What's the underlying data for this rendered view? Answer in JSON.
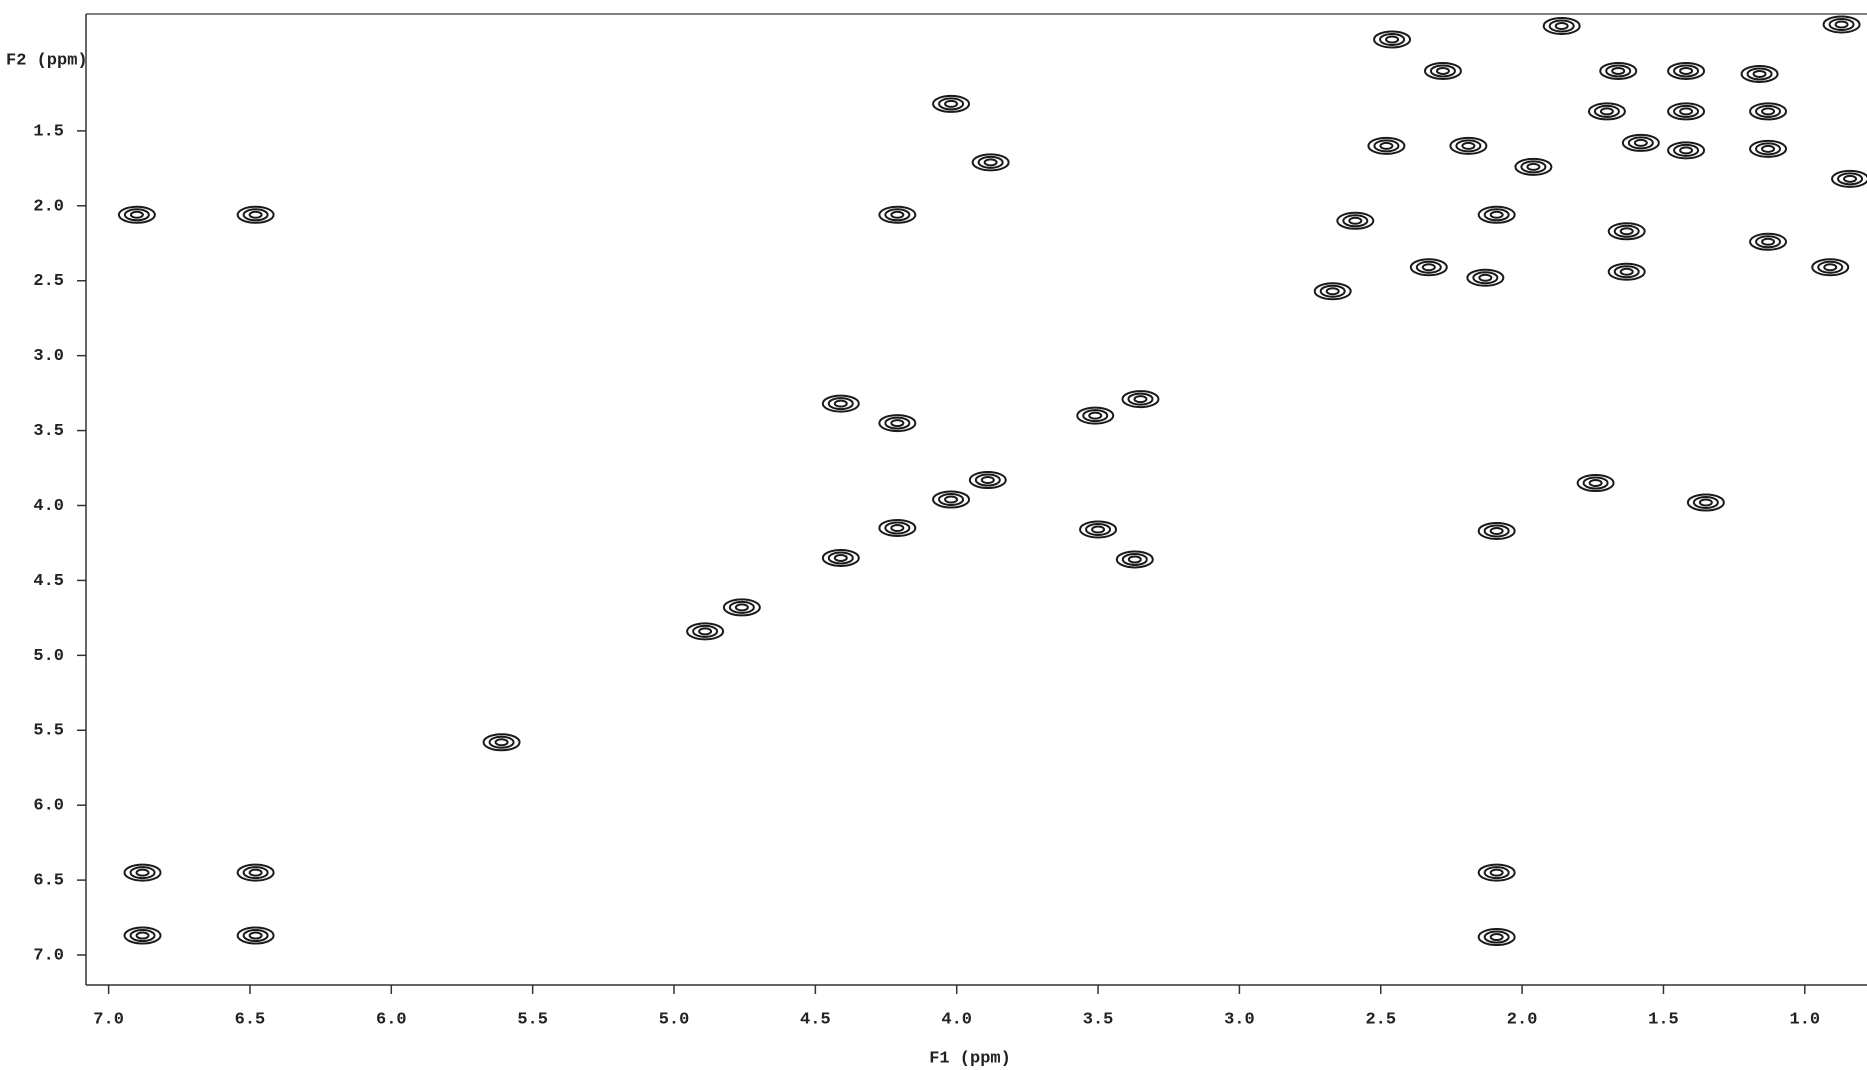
{
  "chart_data": {
    "type": "scatter",
    "x_label": "F1 (ppm)",
    "y_label": "F2 (ppm)",
    "xlim": [
      7.08,
      0.78
    ],
    "ylim": [
      0.72,
      7.2
    ],
    "xticks": [
      {
        "value": 7,
        "label": "7.0"
      },
      6.5,
      {
        "value": 6,
        "label": "6.0"
      },
      5.5,
      {
        "value": 5,
        "label": "5.0"
      },
      4.5,
      {
        "value": 4,
        "label": "4.0"
      },
      3.5,
      {
        "value": 3,
        "label": "3.0"
      },
      2.5,
      {
        "value": 2,
        "label": "2.0"
      },
      1.5,
      {
        "value": 1,
        "label": "1.0"
      }
    ],
    "yticks": [
      1.5,
      {
        "value": 2,
        "label": "2.0"
      },
      2.5,
      {
        "value": 3,
        "label": "3.0"
      },
      3.5,
      {
        "value": 4,
        "label": "4.0"
      },
      4.5,
      {
        "value": 5,
        "label": "5.0"
      },
      5.5,
      {
        "value": 6,
        "label": "6.0"
      },
      6.5,
      {
        "value": 7,
        "label": "7.0"
      }
    ],
    "color": "#1a1a1a",
    "x": [
      6.9,
      6.48,
      6.88,
      6.48,
      6.88,
      6.48,
      5.61,
      4.89,
      4.76,
      4.41,
      4.41,
      4.21,
      4.21,
      4.02,
      3.89,
      4.02,
      3.88,
      4.21,
      3.5,
      3.37,
      3.51,
      3.35,
      2.09,
      2.59,
      2.67,
      2.48,
      2.19,
      2.28,
      2.46,
      1.86,
      1.66,
      1.7,
      1.42,
      1.42,
      1.42,
      1.13,
      1.13,
      1.13,
      0.91,
      0.84,
      1.63,
      1.63,
      2.13,
      2.09,
      2.09,
      2.09,
      1.35,
      1.74,
      0.87,
      1.16,
      1.58,
      2.33,
      1.96
    ],
    "y": [
      2.06,
      2.06,
      6.45,
      6.45,
      6.87,
      6.87,
      5.58,
      4.84,
      4.68,
      4.35,
      3.32,
      3.45,
      4.15,
      3.96,
      3.83,
      1.32,
      1.71,
      2.06,
      4.16,
      4.36,
      3.4,
      3.29,
      2.06,
      2.1,
      2.57,
      1.6,
      1.6,
      1.1,
      0.89,
      0.8,
      1.1,
      1.37,
      1.1,
      1.37,
      1.63,
      1.37,
      1.62,
      2.24,
      2.41,
      1.82,
      2.17,
      2.44,
      2.48,
      6.45,
      6.88,
      4.17,
      3.98,
      3.85,
      0.79,
      1.12,
      1.58,
      2.41,
      1.74
    ]
  }
}
